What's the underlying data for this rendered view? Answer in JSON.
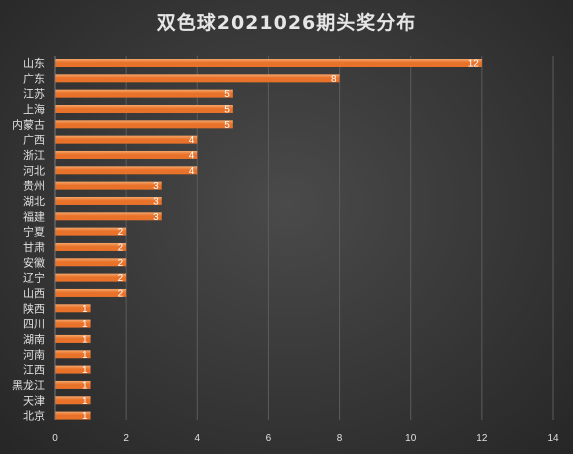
{
  "chart_data": {
    "type": "bar",
    "orientation": "horizontal",
    "title": "双色球2021026期头奖分布",
    "categories": [
      "山东",
      "广东",
      "江苏",
      "上海",
      "内蒙古",
      "广西",
      "浙江",
      "河北",
      "贵州",
      "湖北",
      "福建",
      "宁夏",
      "甘肃",
      "安徽",
      "辽宁",
      "山西",
      "陕西",
      "四川",
      "湖南",
      "河南",
      "江西",
      "黑龙江",
      "天津",
      "北京"
    ],
    "values": [
      12,
      8,
      5,
      5,
      5,
      4,
      4,
      4,
      3,
      3,
      3,
      2,
      2,
      2,
      2,
      2,
      1,
      1,
      1,
      1,
      1,
      1,
      1,
      1
    ],
    "xlim": [
      0,
      14
    ],
    "xticks": [
      0,
      2,
      4,
      6,
      8,
      10,
      12,
      14
    ],
    "grid": true,
    "data_labels": true,
    "bar_color": "#e8722a",
    "bar_highlight_color": "#f6a66a",
    "background_color": "#3a3a3a"
  }
}
